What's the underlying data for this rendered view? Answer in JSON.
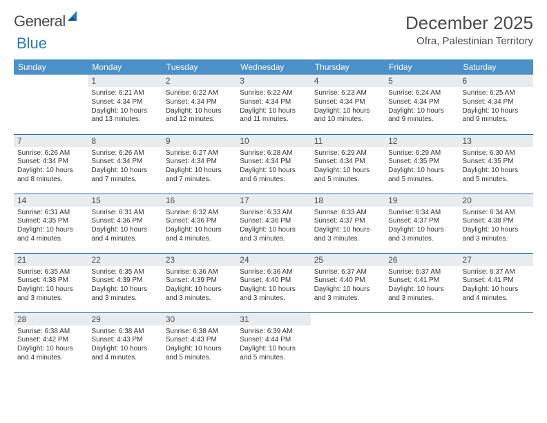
{
  "logo": {
    "word1": "General",
    "word2": "Blue"
  },
  "title": "December 2025",
  "location": "Ofra, Palestinian Territory",
  "colors": {
    "header_bg": "#4a90c9",
    "row_border": "#2f6aa6",
    "daynum_bg": "#e9ecef",
    "logo_blue": "#2a7ab9"
  },
  "days_of_week": [
    "Sunday",
    "Monday",
    "Tuesday",
    "Wednesday",
    "Thursday",
    "Friday",
    "Saturday"
  ],
  "cells": [
    {
      "n": "",
      "sr": "",
      "ss": "",
      "dl": ""
    },
    {
      "n": "1",
      "sr": "Sunrise: 6:21 AM",
      "ss": "Sunset: 4:34 PM",
      "dl": "Daylight: 10 hours and 13 minutes."
    },
    {
      "n": "2",
      "sr": "Sunrise: 6:22 AM",
      "ss": "Sunset: 4:34 PM",
      "dl": "Daylight: 10 hours and 12 minutes."
    },
    {
      "n": "3",
      "sr": "Sunrise: 6:22 AM",
      "ss": "Sunset: 4:34 PM",
      "dl": "Daylight: 10 hours and 11 minutes."
    },
    {
      "n": "4",
      "sr": "Sunrise: 6:23 AM",
      "ss": "Sunset: 4:34 PM",
      "dl": "Daylight: 10 hours and 10 minutes."
    },
    {
      "n": "5",
      "sr": "Sunrise: 6:24 AM",
      "ss": "Sunset: 4:34 PM",
      "dl": "Daylight: 10 hours and 9 minutes."
    },
    {
      "n": "6",
      "sr": "Sunrise: 6:25 AM",
      "ss": "Sunset: 4:34 PM",
      "dl": "Daylight: 10 hours and 9 minutes."
    },
    {
      "n": "7",
      "sr": "Sunrise: 6:26 AM",
      "ss": "Sunset: 4:34 PM",
      "dl": "Daylight: 10 hours and 8 minutes."
    },
    {
      "n": "8",
      "sr": "Sunrise: 6:26 AM",
      "ss": "Sunset: 4:34 PM",
      "dl": "Daylight: 10 hours and 7 minutes."
    },
    {
      "n": "9",
      "sr": "Sunrise: 6:27 AM",
      "ss": "Sunset: 4:34 PM",
      "dl": "Daylight: 10 hours and 7 minutes."
    },
    {
      "n": "10",
      "sr": "Sunrise: 6:28 AM",
      "ss": "Sunset: 4:34 PM",
      "dl": "Daylight: 10 hours and 6 minutes."
    },
    {
      "n": "11",
      "sr": "Sunrise: 6:29 AM",
      "ss": "Sunset: 4:34 PM",
      "dl": "Daylight: 10 hours and 5 minutes."
    },
    {
      "n": "12",
      "sr": "Sunrise: 6:29 AM",
      "ss": "Sunset: 4:35 PM",
      "dl": "Daylight: 10 hours and 5 minutes."
    },
    {
      "n": "13",
      "sr": "Sunrise: 6:30 AM",
      "ss": "Sunset: 4:35 PM",
      "dl": "Daylight: 10 hours and 5 minutes."
    },
    {
      "n": "14",
      "sr": "Sunrise: 6:31 AM",
      "ss": "Sunset: 4:35 PM",
      "dl": "Daylight: 10 hours and 4 minutes."
    },
    {
      "n": "15",
      "sr": "Sunrise: 6:31 AM",
      "ss": "Sunset: 4:36 PM",
      "dl": "Daylight: 10 hours and 4 minutes."
    },
    {
      "n": "16",
      "sr": "Sunrise: 6:32 AM",
      "ss": "Sunset: 4:36 PM",
      "dl": "Daylight: 10 hours and 4 minutes."
    },
    {
      "n": "17",
      "sr": "Sunrise: 6:33 AM",
      "ss": "Sunset: 4:36 PM",
      "dl": "Daylight: 10 hours and 3 minutes."
    },
    {
      "n": "18",
      "sr": "Sunrise: 6:33 AM",
      "ss": "Sunset: 4:37 PM",
      "dl": "Daylight: 10 hours and 3 minutes."
    },
    {
      "n": "19",
      "sr": "Sunrise: 6:34 AM",
      "ss": "Sunset: 4:37 PM",
      "dl": "Daylight: 10 hours and 3 minutes."
    },
    {
      "n": "20",
      "sr": "Sunrise: 6:34 AM",
      "ss": "Sunset: 4:38 PM",
      "dl": "Daylight: 10 hours and 3 minutes."
    },
    {
      "n": "21",
      "sr": "Sunrise: 6:35 AM",
      "ss": "Sunset: 4:38 PM",
      "dl": "Daylight: 10 hours and 3 minutes."
    },
    {
      "n": "22",
      "sr": "Sunrise: 6:35 AM",
      "ss": "Sunset: 4:39 PM",
      "dl": "Daylight: 10 hours and 3 minutes."
    },
    {
      "n": "23",
      "sr": "Sunrise: 6:36 AM",
      "ss": "Sunset: 4:39 PM",
      "dl": "Daylight: 10 hours and 3 minutes."
    },
    {
      "n": "24",
      "sr": "Sunrise: 6:36 AM",
      "ss": "Sunset: 4:40 PM",
      "dl": "Daylight: 10 hours and 3 minutes."
    },
    {
      "n": "25",
      "sr": "Sunrise: 6:37 AM",
      "ss": "Sunset: 4:40 PM",
      "dl": "Daylight: 10 hours and 3 minutes."
    },
    {
      "n": "26",
      "sr": "Sunrise: 6:37 AM",
      "ss": "Sunset: 4:41 PM",
      "dl": "Daylight: 10 hours and 3 minutes."
    },
    {
      "n": "27",
      "sr": "Sunrise: 6:37 AM",
      "ss": "Sunset: 4:41 PM",
      "dl": "Daylight: 10 hours and 4 minutes."
    },
    {
      "n": "28",
      "sr": "Sunrise: 6:38 AM",
      "ss": "Sunset: 4:42 PM",
      "dl": "Daylight: 10 hours and 4 minutes."
    },
    {
      "n": "29",
      "sr": "Sunrise: 6:38 AM",
      "ss": "Sunset: 4:43 PM",
      "dl": "Daylight: 10 hours and 4 minutes."
    },
    {
      "n": "30",
      "sr": "Sunrise: 6:38 AM",
      "ss": "Sunset: 4:43 PM",
      "dl": "Daylight: 10 hours and 5 minutes."
    },
    {
      "n": "31",
      "sr": "Sunrise: 6:39 AM",
      "ss": "Sunset: 4:44 PM",
      "dl": "Daylight: 10 hours and 5 minutes."
    },
    {
      "n": "",
      "sr": "",
      "ss": "",
      "dl": ""
    },
    {
      "n": "",
      "sr": "",
      "ss": "",
      "dl": ""
    },
    {
      "n": "",
      "sr": "",
      "ss": "",
      "dl": ""
    }
  ]
}
